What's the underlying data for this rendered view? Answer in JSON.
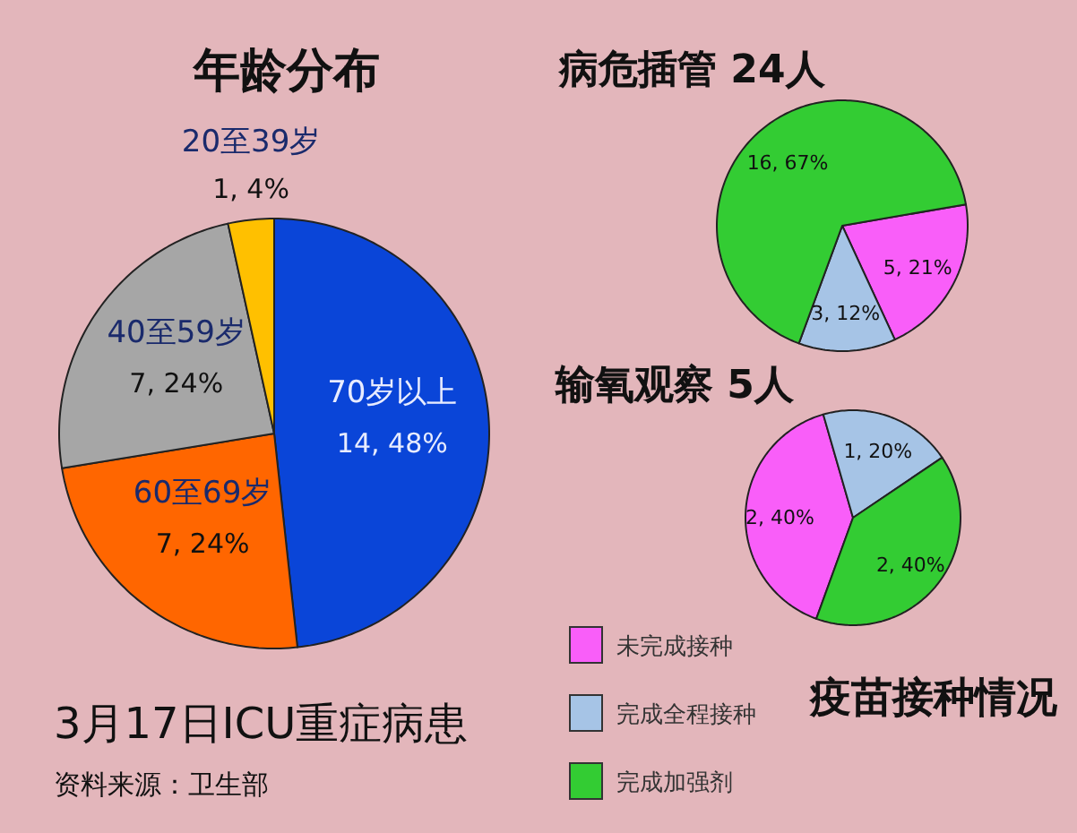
{
  "chart_data": [
    {
      "type": "pie",
      "title": "年龄分布",
      "categories": [
        "70岁以上",
        "60至69岁",
        "40至59岁",
        "20至39岁"
      ],
      "values": [
        14,
        7,
        7,
        1
      ],
      "colors": [
        "#0a45d8",
        "#ff6600",
        "#a6a6a6",
        "#ffc000"
      ],
      "value_labels": [
        "14, 48%",
        "7, 24%",
        "7, 24%",
        "1, 4%"
      ],
      "annotations": [
        "3月17日ICU重症病患",
        "资料来源：卫生部"
      ]
    },
    {
      "type": "pie",
      "title": "病危插管 24人",
      "categories": [
        null,
        null,
        null
      ],
      "values": [
        5,
        3,
        16
      ],
      "colors": [
        "#f95ef9",
        "#a6c4e6",
        "#33cc33"
      ],
      "value_labels": [
        "5, 21%",
        "3, 12%",
        "16, 67%"
      ]
    },
    {
      "type": "pie",
      "title": "输氧观察 5人",
      "categories": [
        "未完成接种",
        "完成全程接种",
        "完成加强剂"
      ],
      "values": [
        2,
        1,
        2
      ],
      "colors": [
        "#f95ef9",
        "#a6c4e6",
        "#33cc33"
      ],
      "value_labels": [
        "2, 40%",
        "1, 20%",
        "2, 40%"
      ],
      "legend": "bottom",
      "legend_title": "疫苗接种情况"
    }
  ]
}
